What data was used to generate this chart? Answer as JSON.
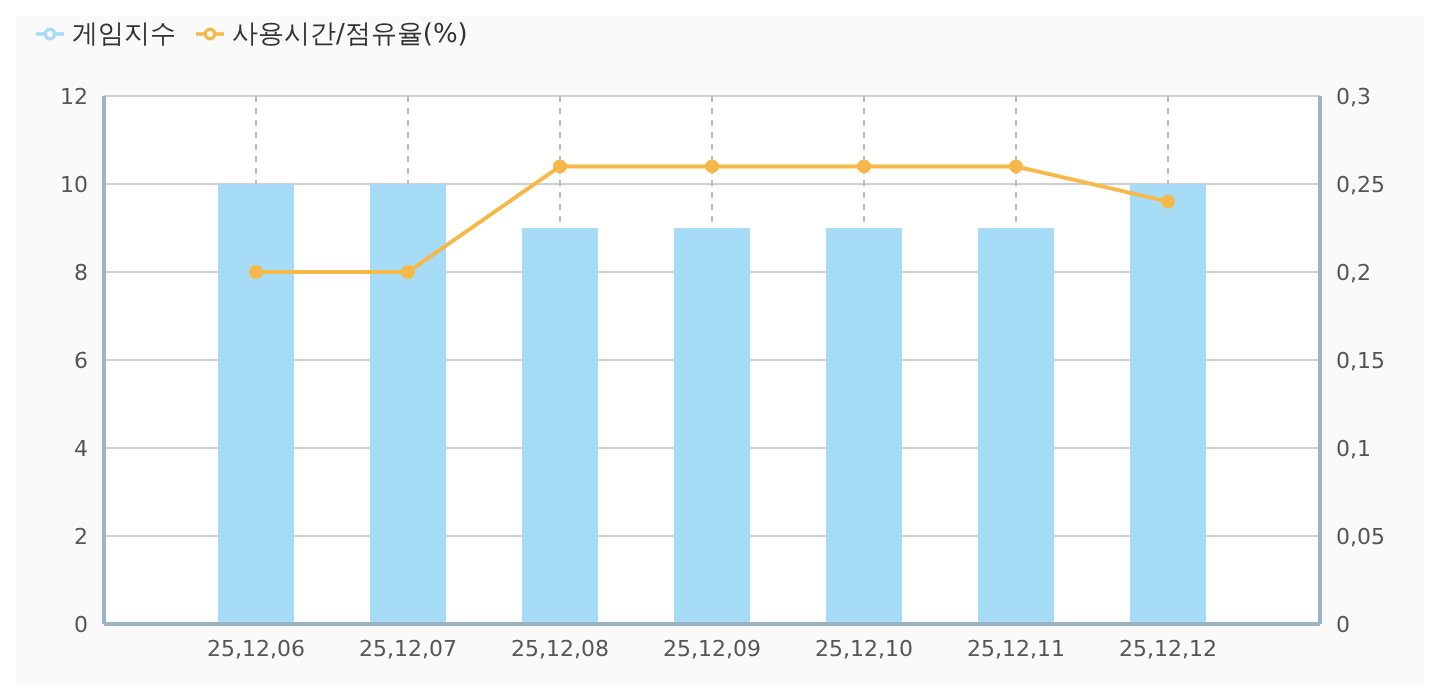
{
  "chart_data": {
    "type": "bar",
    "categories": [
      "25,12,06",
      "25,12,07",
      "25,12,08",
      "25,12,09",
      "25,12,10",
      "25,12,11",
      "25,12,12"
    ],
    "series": [
      {
        "name": "게임지수",
        "color": "#a6dcf6",
        "values": [
          10,
          10,
          9,
          9,
          9,
          9,
          10
        ]
      },
      {
        "name": "사용시간/점유율(%)",
        "type": "line",
        "axis": "y2",
        "color": "#f7b84a",
        "values": [
          0.2,
          0.2,
          0.26,
          0.26,
          0.26,
          0.26,
          0.24
        ]
      }
    ],
    "ylim": [
      0,
      12
    ],
    "yticks": [
      0,
      2,
      4,
      6,
      8,
      10,
      12
    ],
    "y2lim": [
      0,
      0.3
    ],
    "y2ticks": [
      0,
      {
        "value": 0.05,
        "label": "0,05"
      },
      {
        "value": 0.1,
        "label": "0,1"
      },
      {
        "value": 0.15,
        "label": "0,15"
      },
      {
        "value": 0.2,
        "label": "0,2"
      },
      {
        "value": 0.25,
        "label": "0,25"
      },
      {
        "value": 0.3,
        "label": "0,3"
      }
    ],
    "grid": true,
    "legend": "top left",
    "marker": "circle",
    "line_style": "solid"
  }
}
